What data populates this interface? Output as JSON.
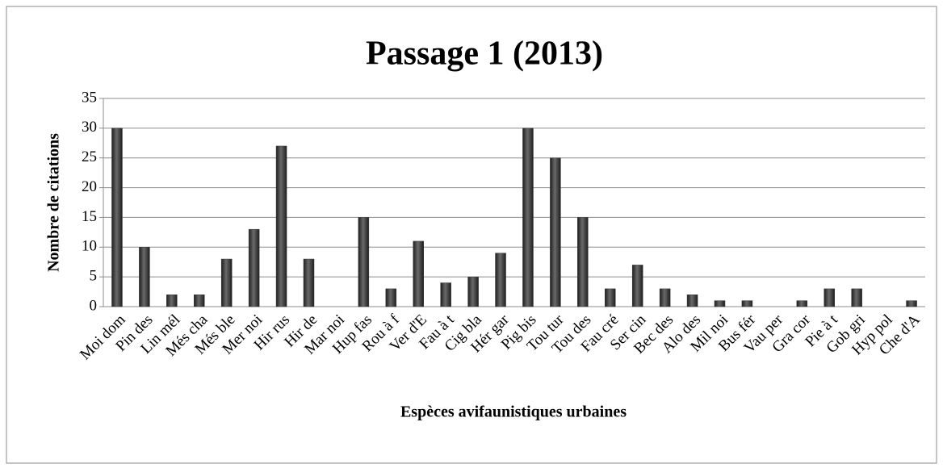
{
  "chart_data": {
    "type": "bar",
    "title": "Passage 1 (2013)",
    "x_label": "Espèces avifaunistiques urbaines",
    "y_label": "Nombre de citations",
    "categories": [
      "Moi dom",
      "Pin des",
      "Lin mél",
      "Més cha",
      "Més ble",
      "Mer noi",
      "Hir rus",
      "Hir de",
      "Mar noi",
      "Hup fas",
      "Rou à f",
      "Ver d'E",
      "Fau à t",
      "Cig bla",
      "Hér gar",
      "Pig bis",
      "Tou tur",
      "Tou des",
      "Fau cré",
      "Ser cin",
      "Bec des",
      "Alo des",
      "Mil noi",
      "Bus fér",
      "Vau per",
      "Gra cor",
      "Pie à t",
      "Gob gri",
      "Hyp pol",
      "Che d'A"
    ],
    "values": [
      30,
      10,
      2,
      2,
      8,
      13,
      27,
      8,
      0,
      15,
      3,
      11,
      4,
      5,
      9,
      30,
      25,
      15,
      3,
      7,
      3,
      2,
      1,
      1,
      0,
      1,
      3,
      3,
      0,
      1
    ],
    "color": "#3a3a3a",
    "ylim": [
      0,
      35
    ],
    "yticks": [
      0,
      5,
      10,
      15,
      20,
      25,
      30,
      35
    ],
    "grid": true
  }
}
